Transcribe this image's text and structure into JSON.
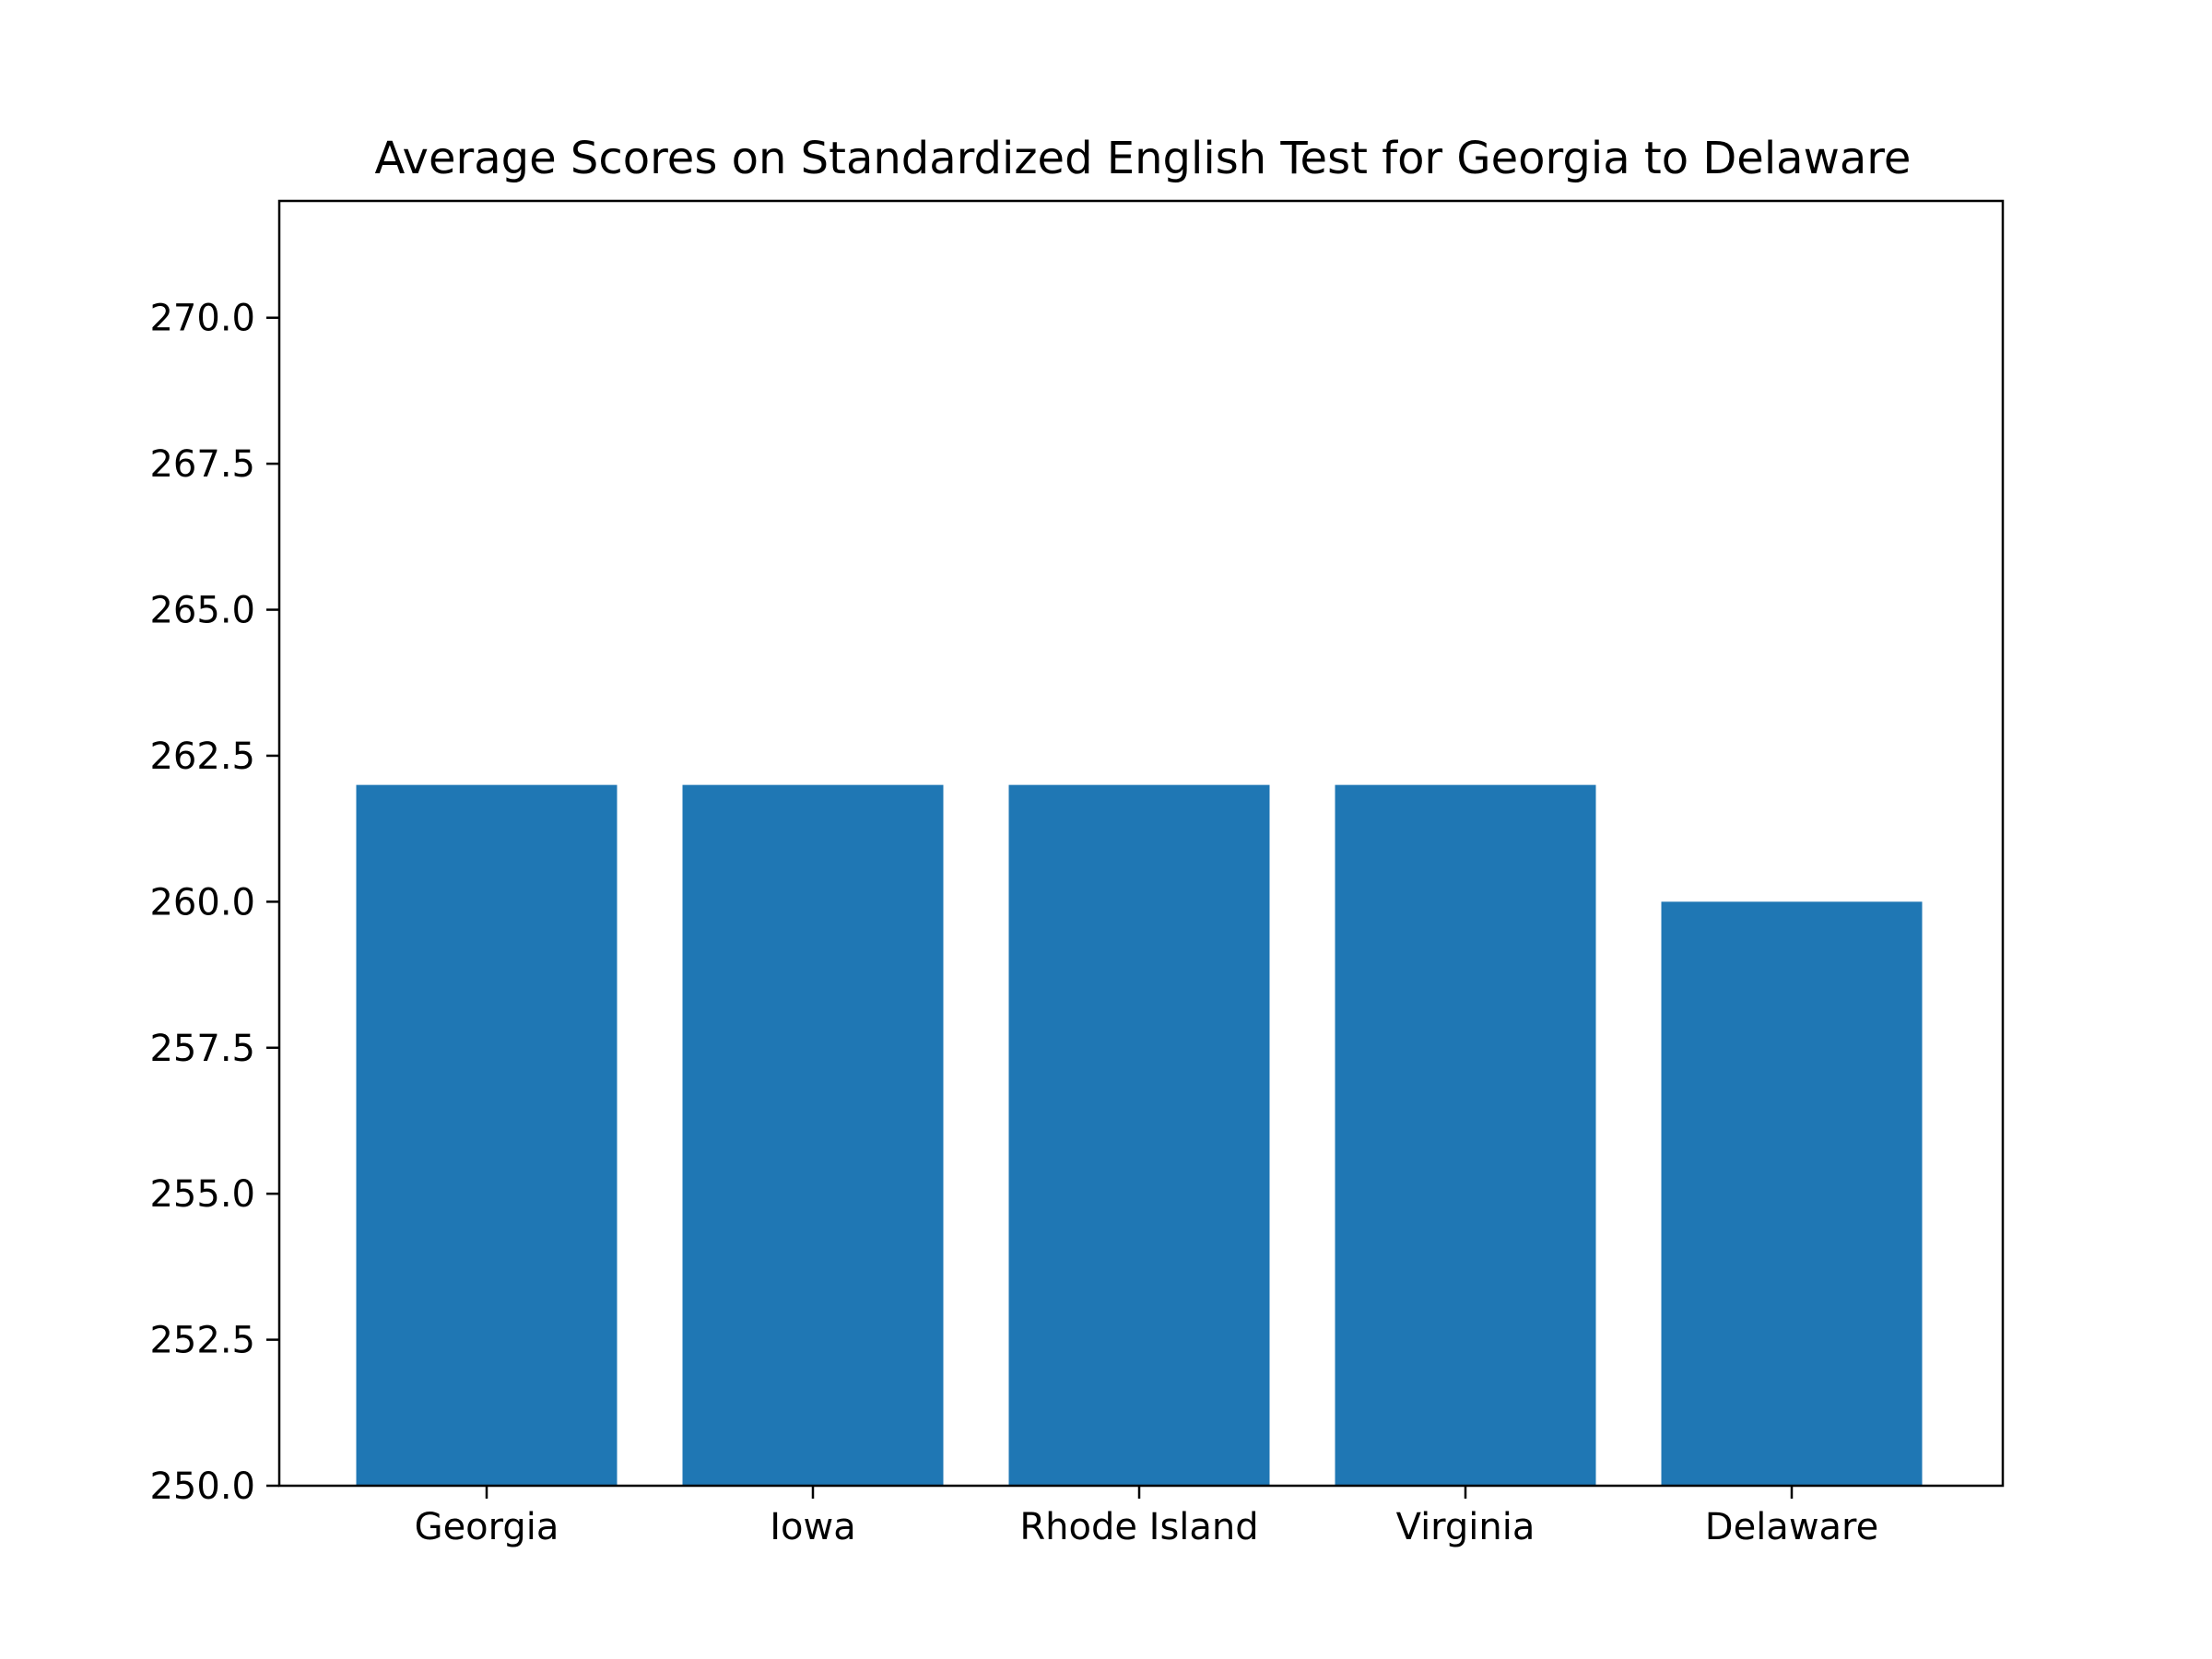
{
  "chart_data": {
    "type": "bar",
    "title": "Average Scores on Standardized English Test for Georgia to Delaware",
    "xlabel": "",
    "ylabel": "",
    "categories": [
      "Georgia",
      "Iowa",
      "Rhode Island",
      "Virginia",
      "Delaware"
    ],
    "values": [
      262,
      262,
      262,
      262,
      260
    ],
    "ylim": [
      250,
      272
    ],
    "yticks": [
      250.0,
      252.5,
      255.0,
      257.5,
      260.0,
      262.5,
      265.0,
      267.5,
      270.0
    ],
    "ytick_labels": [
      "250.0",
      "252.5",
      "255.0",
      "257.5",
      "260.0",
      "262.5",
      "265.0",
      "267.5",
      "270.0"
    ],
    "grid": false,
    "legend": "none",
    "bar_color": "#1f77b4"
  }
}
